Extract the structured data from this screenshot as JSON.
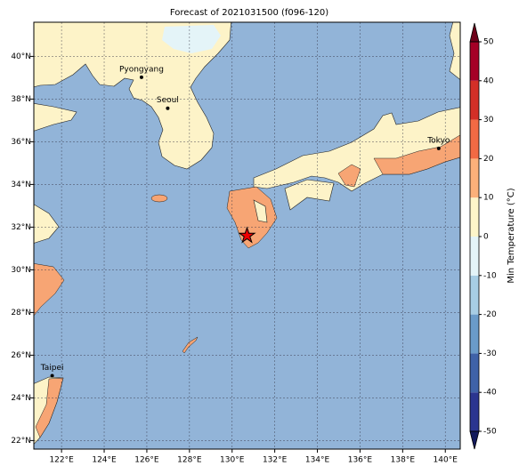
{
  "map": {
    "title": "Forecast of 2021031500 (f096-120)",
    "lonlim": [
      120.7,
      140.7
    ],
    "latlim": [
      21.6,
      41.6
    ],
    "lonticks": [
      {
        "value": 122,
        "label": "122°E"
      },
      {
        "value": 124,
        "label": "124°E"
      },
      {
        "value": 126,
        "label": "126°E"
      },
      {
        "value": 128,
        "label": "128°E"
      },
      {
        "value": 130,
        "label": "130°E"
      },
      {
        "value": 132,
        "label": "132°E"
      },
      {
        "value": 134,
        "label": "134°E"
      },
      {
        "value": 136,
        "label": "136°E"
      },
      {
        "value": 138,
        "label": "138°E"
      },
      {
        "value": 140,
        "label": "140°E"
      }
    ],
    "latticks": [
      {
        "value": 22,
        "label": "22°N"
      },
      {
        "value": 24,
        "label": "24°N"
      },
      {
        "value": 26,
        "label": "26°N"
      },
      {
        "value": 28,
        "label": "28°N"
      },
      {
        "value": 30,
        "label": "30°N"
      },
      {
        "value": 32,
        "label": "32°N"
      },
      {
        "value": 34,
        "label": "34°N"
      },
      {
        "value": 36,
        "label": "36°N"
      },
      {
        "value": 38,
        "label": "38°N"
      },
      {
        "value": 40,
        "label": "40°N"
      }
    ],
    "cities": [
      {
        "name": "Pyongyang",
        "lon": 125.75,
        "lat": 39.02
      },
      {
        "name": "Seoul",
        "lon": 126.98,
        "lat": 37.57
      },
      {
        "name": "Tokyo",
        "lon": 139.69,
        "lat": 35.69
      },
      {
        "name": "Taipei",
        "lon": 121.56,
        "lat": 25.04
      }
    ],
    "star": {
      "lon": 130.7,
      "lat": 31.6
    },
    "colorbar": {
      "label": "Min Temperature (°C)",
      "lim": [
        -50,
        50
      ],
      "ticks": [
        -50,
        -40,
        -30,
        -20,
        -10,
        0,
        10,
        20,
        30,
        40,
        50
      ],
      "colors": [
        "#2b3590",
        "#3f62a8",
        "#6a9bc9",
        "#a7cde4",
        "#e4f4f8",
        "#fdf5c9",
        "#fcb07a",
        "#f26a44",
        "#d32f27",
        "#a50026"
      ],
      "under": "#131a5c",
      "over": "#6e0019"
    }
  }
}
